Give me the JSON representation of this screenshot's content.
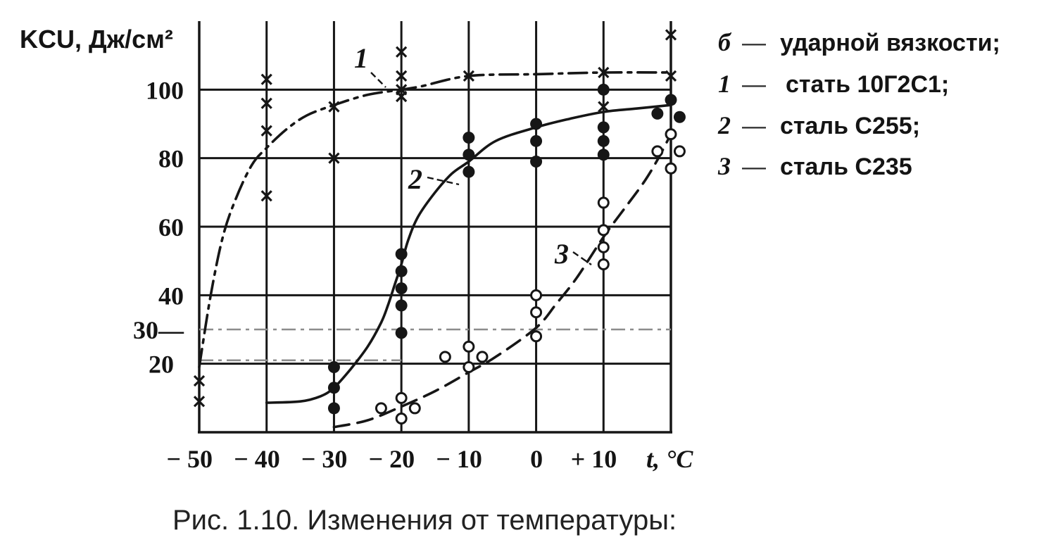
{
  "chart_data": {
    "type": "line",
    "caption": "Рис. 1.10. Изменения от температуры:",
    "ylabel": "KCU, Дж/см²",
    "xlabel": "t, °C",
    "xlim": [
      -50,
      20
    ],
    "ylim": [
      0,
      120
    ],
    "grid": true,
    "x_ticks": [
      {
        "value": -50,
        "label": "− 50"
      },
      {
        "value": -40,
        "label": "− 40"
      },
      {
        "value": -30,
        "label": "− 30"
      },
      {
        "value": -20,
        "label": "− 20"
      },
      {
        "value": -10,
        "label": "− 10"
      },
      {
        "value": 0,
        "label": "0"
      },
      {
        "value": 10,
        "label": "+ 10"
      }
    ],
    "x_gridlines": [
      -40,
      -30,
      -20,
      -10,
      0,
      10
    ],
    "y_ticks": [
      {
        "value": 100,
        "label": "100"
      },
      {
        "value": 80,
        "label": "80"
      },
      {
        "value": 60,
        "label": "60"
      },
      {
        "value": 40,
        "label": "40"
      },
      {
        "value": 30,
        "label": "30—"
      },
      {
        "value": 20,
        "label": "20"
      }
    ],
    "y_gridlines": [
      20,
      40,
      60,
      80,
      100
    ],
    "reference_lines": [
      {
        "y": 30,
        "x": [
          -50,
          20
        ],
        "style": "dash-dot",
        "color": "#8c8c8c"
      },
      {
        "y": 21,
        "x": [
          -50,
          -20
        ],
        "style": "dash-dot",
        "color": "#8c8c8c"
      }
    ],
    "legend_position": "right",
    "legend": [
      {
        "key": "б",
        "separator": "—",
        "text": "ударной вязкости;"
      },
      {
        "key": "1",
        "separator": "—",
        "text": "стать 10Г2С1;"
      },
      {
        "key": "2",
        "separator": "—",
        "text": "сталь С255;"
      },
      {
        "key": "3",
        "separator": "—",
        "text": "сталь С235"
      }
    ],
    "series": [
      {
        "label": "1",
        "line": "dash-dot",
        "marker": "cross",
        "color": "#161616",
        "curve": [
          [
            -50,
            19
          ],
          [
            -48.3,
            40
          ],
          [
            -46.5,
            57
          ],
          [
            -44.6,
            68
          ],
          [
            -42.2,
            78
          ],
          [
            -40,
            83
          ],
          [
            -37,
            88.5
          ],
          [
            -34,
            92.5
          ],
          [
            -30,
            95.5
          ],
          [
            -25,
            98.5
          ],
          [
            -20,
            100
          ],
          [
            -17,
            101
          ],
          [
            -10,
            104
          ],
          [
            0,
            104.5
          ],
          [
            10,
            105
          ],
          [
            20,
            105
          ]
        ],
        "points": [
          [
            -50,
            15
          ],
          [
            -50,
            9
          ],
          [
            -40,
            103
          ],
          [
            -40,
            96
          ],
          [
            -40,
            88
          ],
          [
            -40,
            69
          ],
          [
            -30,
            95
          ],
          [
            -30,
            80
          ],
          [
            -20,
            111
          ],
          [
            -20,
            104
          ],
          [
            -20,
            100
          ],
          [
            -20,
            98
          ],
          [
            -10,
            104
          ],
          [
            10,
            105
          ],
          [
            10,
            95
          ],
          [
            20,
            116
          ],
          [
            20,
            104
          ]
        ]
      },
      {
        "label": "2",
        "line": "solid",
        "marker": "filled-circle",
        "color": "#161616",
        "curve": [
          [
            -40,
            8.6
          ],
          [
            -35,
            9
          ],
          [
            -32,
            10.5
          ],
          [
            -30,
            13
          ],
          [
            -27.5,
            18.5
          ],
          [
            -25,
            25
          ],
          [
            -23,
            32
          ],
          [
            -22,
            37
          ],
          [
            -21,
            43
          ],
          [
            -20,
            49
          ],
          [
            -19,
            56
          ],
          [
            -17.5,
            63
          ],
          [
            -15,
            70
          ],
          [
            -12.5,
            75.5
          ],
          [
            -10,
            79
          ],
          [
            -6,
            85
          ],
          [
            0,
            89
          ],
          [
            5,
            91.5
          ],
          [
            10,
            93.5
          ],
          [
            15,
            94.5
          ],
          [
            20,
            95.5
          ]
        ],
        "points": [
          [
            -30,
            19
          ],
          [
            -30,
            13
          ],
          [
            -30,
            7
          ],
          [
            -20,
            52
          ],
          [
            -20,
            47
          ],
          [
            -20,
            42
          ],
          [
            -20,
            37
          ],
          [
            -20,
            29
          ],
          [
            -10,
            86
          ],
          [
            -10,
            81
          ],
          [
            -10,
            76
          ],
          [
            0,
            90
          ],
          [
            0,
            85
          ],
          [
            0,
            79
          ],
          [
            10,
            100
          ],
          [
            10,
            89
          ],
          [
            10,
            85
          ],
          [
            10,
            81
          ],
          [
            18,
            93
          ],
          [
            20,
            97
          ],
          [
            21.3,
            92
          ]
        ]
      },
      {
        "label": "3",
        "line": "dashed",
        "marker": "open-circle",
        "color": "#161616",
        "curve": [
          [
            -30,
            1.5
          ],
          [
            -25,
            3.5
          ],
          [
            -20,
            7.5
          ],
          [
            -15,
            12
          ],
          [
            -10,
            17.5
          ],
          [
            -6,
            22
          ],
          [
            0,
            30.5
          ],
          [
            3,
            37.5
          ],
          [
            6,
            45
          ],
          [
            10,
            57
          ],
          [
            13,
            65
          ],
          [
            16,
            73
          ],
          [
            18,
            79.5
          ],
          [
            20,
            87
          ]
        ],
        "points": [
          [
            -23,
            7
          ],
          [
            -20,
            10
          ],
          [
            -20,
            4
          ],
          [
            -18,
            7
          ],
          [
            -13.5,
            22
          ],
          [
            -10,
            25
          ],
          [
            -10,
            19
          ],
          [
            -8,
            22
          ],
          [
            0,
            40
          ],
          [
            0,
            35
          ],
          [
            0,
            28
          ],
          [
            10,
            67
          ],
          [
            10,
            59
          ],
          [
            10,
            54
          ],
          [
            10,
            49
          ],
          [
            18,
            82
          ],
          [
            20,
            87
          ],
          [
            20,
            77
          ],
          [
            21.3,
            82
          ]
        ]
      }
    ]
  }
}
